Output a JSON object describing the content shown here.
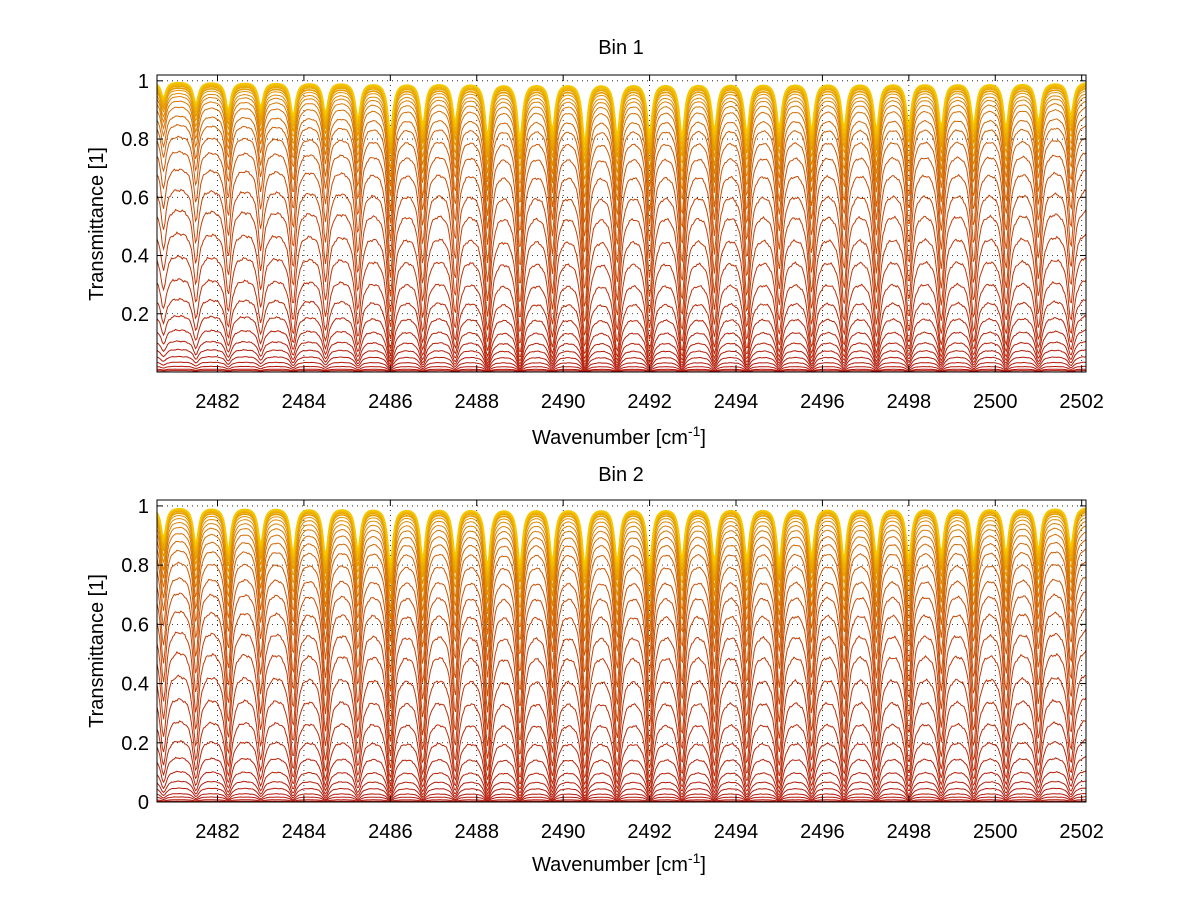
{
  "chart_data": [
    {
      "type": "line",
      "title": "Bin 1",
      "xlabel": "Wavenumber [cm",
      "xlabel_sup": "-1",
      "xlabel_end": "]",
      "ylabel": "Transmittance [1]",
      "xlim": [
        2480.6,
        2502.1
      ],
      "ylim": [
        0.0,
        1.02
      ],
      "xticks": [
        "2482",
        "2484",
        "2486",
        "2488",
        "2490",
        "2492",
        "2494",
        "2496",
        "2498",
        "2500",
        "2502"
      ],
      "yticks": [
        "0.2",
        "0.4",
        "0.6",
        "0.8",
        "1"
      ],
      "grid": true,
      "series_count": 30,
      "series_baselines": [
        0.005,
        0.01,
        0.02,
        0.035,
        0.055,
        0.08,
        0.11,
        0.15,
        0.2,
        0.26,
        0.33,
        0.41,
        0.49,
        0.57,
        0.64,
        0.71,
        0.77,
        0.82,
        0.86,
        0.89,
        0.92,
        0.94,
        0.955,
        0.965,
        0.975,
        0.982,
        0.988,
        0.992,
        0.996,
        0.999
      ],
      "line_centers": [
        2480.75,
        2481.5,
        2482.25,
        2483.0,
        2483.75,
        2484.5,
        2485.25,
        2486.0,
        2486.75,
        2487.5,
        2488.25,
        2489.0,
        2489.75,
        2490.5,
        2491.25,
        2492.0,
        2492.75,
        2493.5,
        2494.25,
        2495.0,
        2495.75,
        2496.5,
        2497.25,
        2498.0,
        2498.75,
        2499.5,
        2500.25,
        2501.0,
        2501.75
      ],
      "line_strengths": [
        0.25,
        0.35,
        0.45,
        0.4,
        0.55,
        0.5,
        0.6,
        0.85,
        0.7,
        0.65,
        0.9,
        0.95,
        0.8,
        1.0,
        0.9,
        0.85,
        0.9,
        0.8,
        0.85,
        0.75,
        0.8,
        0.75,
        0.8,
        0.7,
        0.75,
        0.7,
        0.75,
        0.65,
        0.55
      ],
      "colors": {
        "low": "#b2140a",
        "high": "#f5c800"
      }
    },
    {
      "type": "line",
      "title": "Bin 2",
      "xlabel": "Wavenumber [cm",
      "xlabel_sup": "-1",
      "xlabel_end": "]",
      "ylabel": "Transmittance [1]",
      "xlim": [
        2480.6,
        2502.1
      ],
      "ylim": [
        0.0,
        1.02
      ],
      "xticks": [
        "2482",
        "2484",
        "2486",
        "2488",
        "2490",
        "2492",
        "2494",
        "2496",
        "2498",
        "2500",
        "2502"
      ],
      "yticks": [
        "0",
        "0.2",
        "0.4",
        "0.6",
        "0.8",
        "1"
      ],
      "grid": true,
      "series_count": 30,
      "series_baselines": [
        0.003,
        0.008,
        0.018,
        0.03,
        0.05,
        0.075,
        0.11,
        0.16,
        0.22,
        0.29,
        0.37,
        0.45,
        0.53,
        0.6,
        0.67,
        0.73,
        0.78,
        0.83,
        0.87,
        0.9,
        0.925,
        0.945,
        0.96,
        0.972,
        0.981,
        0.988,
        0.993,
        0.996,
        0.998,
        1.0
      ],
      "line_centers": [
        2480.75,
        2481.5,
        2482.25,
        2483.0,
        2483.75,
        2484.5,
        2485.25,
        2486.0,
        2486.75,
        2487.5,
        2488.25,
        2489.0,
        2489.75,
        2490.5,
        2491.25,
        2492.0,
        2492.75,
        2493.5,
        2494.25,
        2495.0,
        2495.75,
        2496.5,
        2497.25,
        2498.0,
        2498.75,
        2499.5,
        2500.25,
        2501.0,
        2501.75
      ],
      "line_strengths": [
        0.5,
        0.6,
        0.7,
        0.6,
        0.75,
        0.8,
        0.7,
        0.95,
        0.85,
        0.8,
        1.0,
        0.95,
        0.9,
        0.95,
        0.9,
        0.95,
        0.85,
        0.9,
        0.85,
        0.9,
        0.8,
        0.85,
        0.8,
        0.85,
        0.75,
        0.8,
        0.75,
        0.7,
        0.65
      ],
      "colors": {
        "low": "#b2140a",
        "high": "#f5c800"
      }
    }
  ]
}
